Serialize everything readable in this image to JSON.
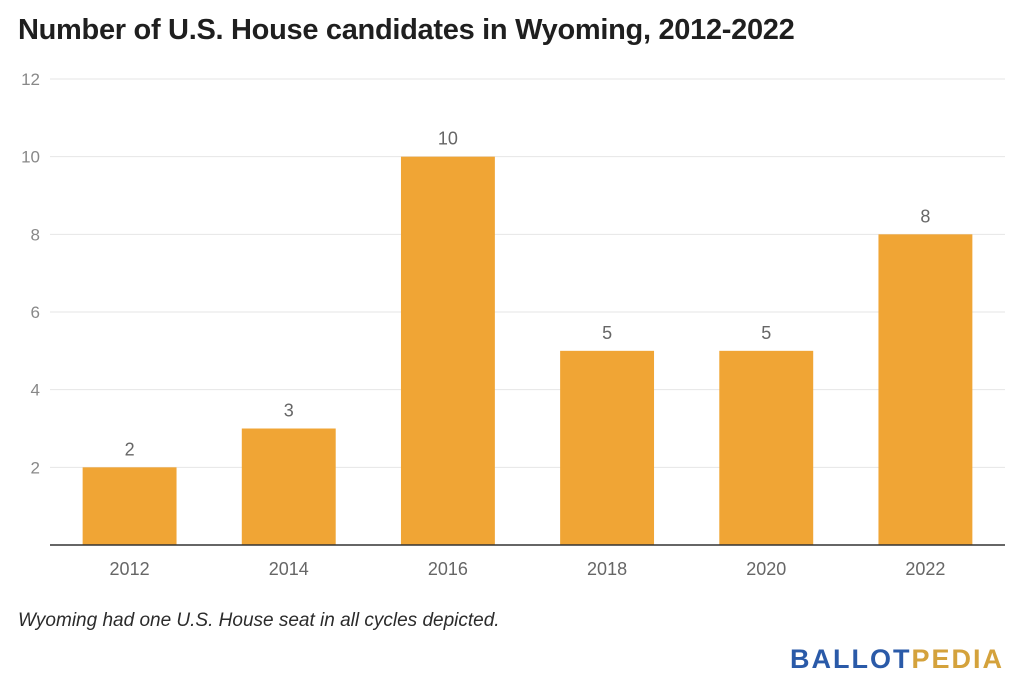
{
  "title": "Number of U.S. House candidates in Wyoming, 2012-2022",
  "note": "Wyoming had one U.S. House seat in all cycles depicted.",
  "logo": {
    "part1": "BALLOT",
    "part2": "PEDIA"
  },
  "colors": {
    "bar": "#F0A535",
    "grid": "#e6e6e6",
    "axis": "#333333",
    "tick_text": "#888888",
    "label_text": "#666666",
    "logo_primary": "#2a5aa8",
    "logo_accent": "#d4a23c"
  },
  "chart_data": {
    "type": "bar",
    "title": "Number of U.S. House candidates in Wyoming, 2012-2022",
    "categories": [
      "2012",
      "2014",
      "2016",
      "2018",
      "2020",
      "2022"
    ],
    "values": [
      2,
      3,
      10,
      5,
      5,
      8
    ],
    "ylim": [
      0,
      12
    ],
    "yticks": [
      2,
      4,
      6,
      8,
      10,
      12
    ],
    "xlabel": "",
    "ylabel": "",
    "grid": true,
    "data_labels": true,
    "legend": "none"
  }
}
